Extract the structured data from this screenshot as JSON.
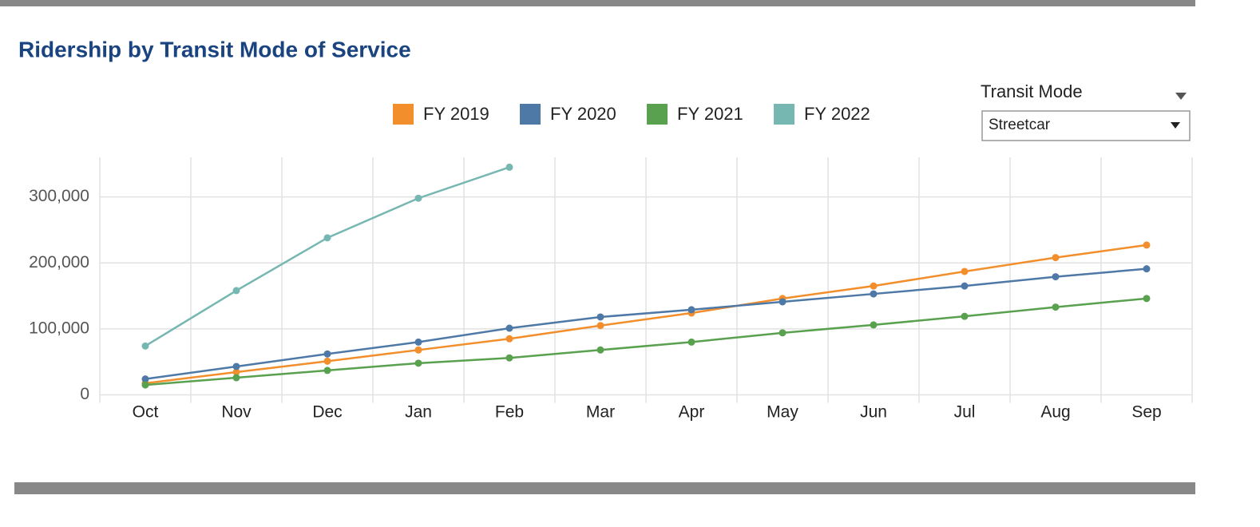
{
  "chart_data": {
    "type": "line",
    "title": "Ridership by Transit Mode of Service",
    "categories": [
      "Oct",
      "Nov",
      "Dec",
      "Jan",
      "Feb",
      "Mar",
      "Apr",
      "May",
      "Jun",
      "Jul",
      "Aug",
      "Sep"
    ],
    "series": [
      {
        "name": "FY 2019",
        "color": "#f28e2b",
        "values": [
          17500,
          34500,
          51000,
          68000,
          85000,
          105000,
          124000,
          146000,
          165000,
          187000,
          208000,
          227000
        ]
      },
      {
        "name": "FY 2020",
        "color": "#4e79a7",
        "values": [
          24000,
          43000,
          62000,
          80000,
          101000,
          118000,
          129000,
          141000,
          153000,
          165000,
          179000,
          191000
        ]
      },
      {
        "name": "FY 2021",
        "color": "#59a14f",
        "values": [
          15000,
          26000,
          37000,
          48000,
          56000,
          68000,
          80000,
          94000,
          106000,
          119000,
          133000,
          146000
        ]
      },
      {
        "name": "FY 2022",
        "color": "#76b7b2",
        "values": [
          74000,
          158000,
          238000,
          298000,
          345000,
          null,
          null,
          null,
          null,
          null,
          null,
          null
        ]
      }
    ],
    "ylim": [
      0,
      360000
    ],
    "yticks": [
      0,
      {
        "value": 100000,
        "label": "100,000"
      },
      {
        "value": 200000,
        "label": "200,000"
      },
      {
        "value": 300000,
        "label": "300,000"
      }
    ],
    "grid": true,
    "legend": "top"
  },
  "controls": {
    "label": "Transit Mode",
    "value": "Streetcar"
  }
}
